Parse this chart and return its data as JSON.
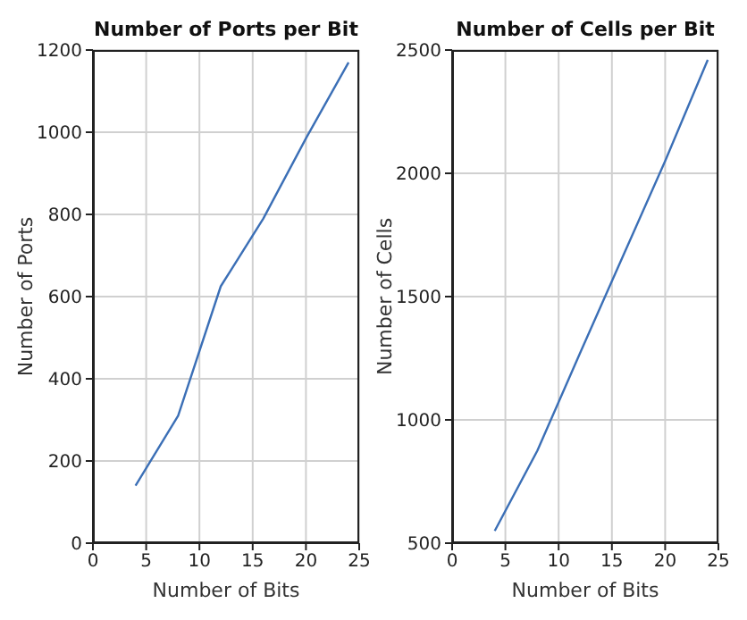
{
  "chart_data": [
    {
      "type": "line",
      "title": "Number of Ports per Bit",
      "xlabel": "Number of Bits",
      "ylabel": "Number of Ports",
      "x": [
        4,
        8,
        12,
        16,
        20,
        24
      ],
      "series": [
        {
          "color": "#3b6fb6",
          "values": [
            140,
            310,
            625,
            790,
            985,
            1170
          ]
        }
      ],
      "xlim": [
        0,
        25
      ],
      "xticks": [
        0,
        5,
        10,
        15,
        20,
        25
      ],
      "ylim": [
        0,
        1200
      ],
      "yticks": [
        0,
        200,
        400,
        600,
        800,
        1000,
        1200
      ],
      "grid": true,
      "marker": "none",
      "line_style": "solid"
    },
    {
      "type": "line",
      "title": "Number of Cells per Bit",
      "xlabel": "Number of Bits",
      "ylabel": "Number of Cells",
      "x": [
        4,
        8,
        12,
        16,
        20,
        24
      ],
      "series": [
        {
          "color": "#3b6fb6",
          "values": [
            550,
            875,
            1270,
            1660,
            2050,
            2460
          ]
        }
      ],
      "xlim": [
        0,
        25
      ],
      "xticks": [
        0,
        5,
        10,
        15,
        20,
        25
      ],
      "ylim": [
        500,
        2500
      ],
      "yticks": [
        500,
        1000,
        1500,
        2000,
        2500
      ],
      "grid": true,
      "marker": "none",
      "line_style": "solid"
    }
  ]
}
